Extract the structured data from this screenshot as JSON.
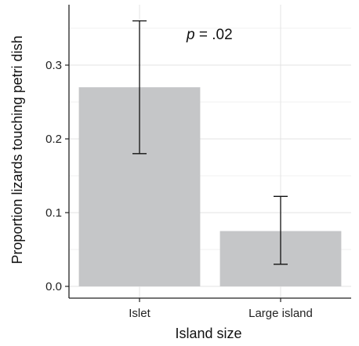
{
  "chart_data": {
    "type": "bar",
    "categories": [
      "Islet",
      "Large island"
    ],
    "values": [
      0.27,
      0.075
    ],
    "error_low": [
      0.18,
      0.03
    ],
    "error_high": [
      0.36,
      0.122
    ],
    "title": "",
    "xlabel": "Island size",
    "ylabel": "Proportion lizards touching petri dish",
    "ylim": [
      0,
      0.38
    ],
    "yticks": [
      "0.0",
      "0.1",
      "0.2",
      "0.3"
    ],
    "grid": true,
    "legend": "none",
    "annotation": {
      "italic": "p",
      "rest": " = .02"
    },
    "colors": {
      "bar": "#c5c6c8",
      "grid": "#e3e3e3",
      "axis": "#222222",
      "error_bar": "#111111"
    }
  }
}
